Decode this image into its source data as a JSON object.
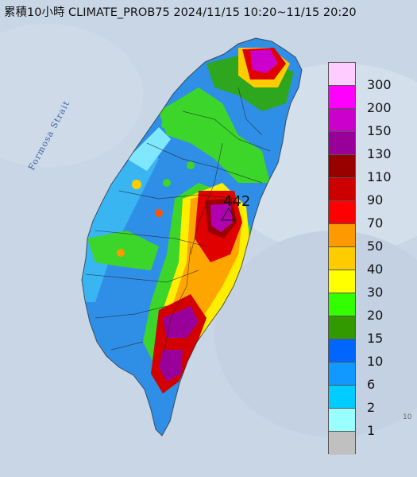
{
  "title": "累積10小時 CLIMATE_PROB75 2024/11/15 10:20~11/15 20:20",
  "strait_label": "Formosa Strait",
  "peak_label": "442",
  "corner_label": "10",
  "legend": [
    {
      "label": "300",
      "color": "#ffccff"
    },
    {
      "label": "200",
      "color": "#ff00ff"
    },
    {
      "label": "150",
      "color": "#cc00cc"
    },
    {
      "label": "130",
      "color": "#990099"
    },
    {
      "label": "110",
      "color": "#990000"
    },
    {
      "label": "90",
      "color": "#cc0000"
    },
    {
      "label": "70",
      "color": "#ff0000"
    },
    {
      "label": "50",
      "color": "#ff9900"
    },
    {
      "label": "40",
      "color": "#ffcc00"
    },
    {
      "label": "30",
      "color": "#ffff00"
    },
    {
      "label": "20",
      "color": "#33ff00"
    },
    {
      "label": "15",
      "color": "#339900"
    },
    {
      "label": "10",
      "color": "#0066ff"
    },
    {
      "label": "6",
      "color": "#1199ff"
    },
    {
      "label": "2",
      "color": "#00ccff"
    },
    {
      "label": "1",
      "color": "#99ffff"
    },
    {
      "label": "",
      "color": "#c0c0c0"
    }
  ]
}
